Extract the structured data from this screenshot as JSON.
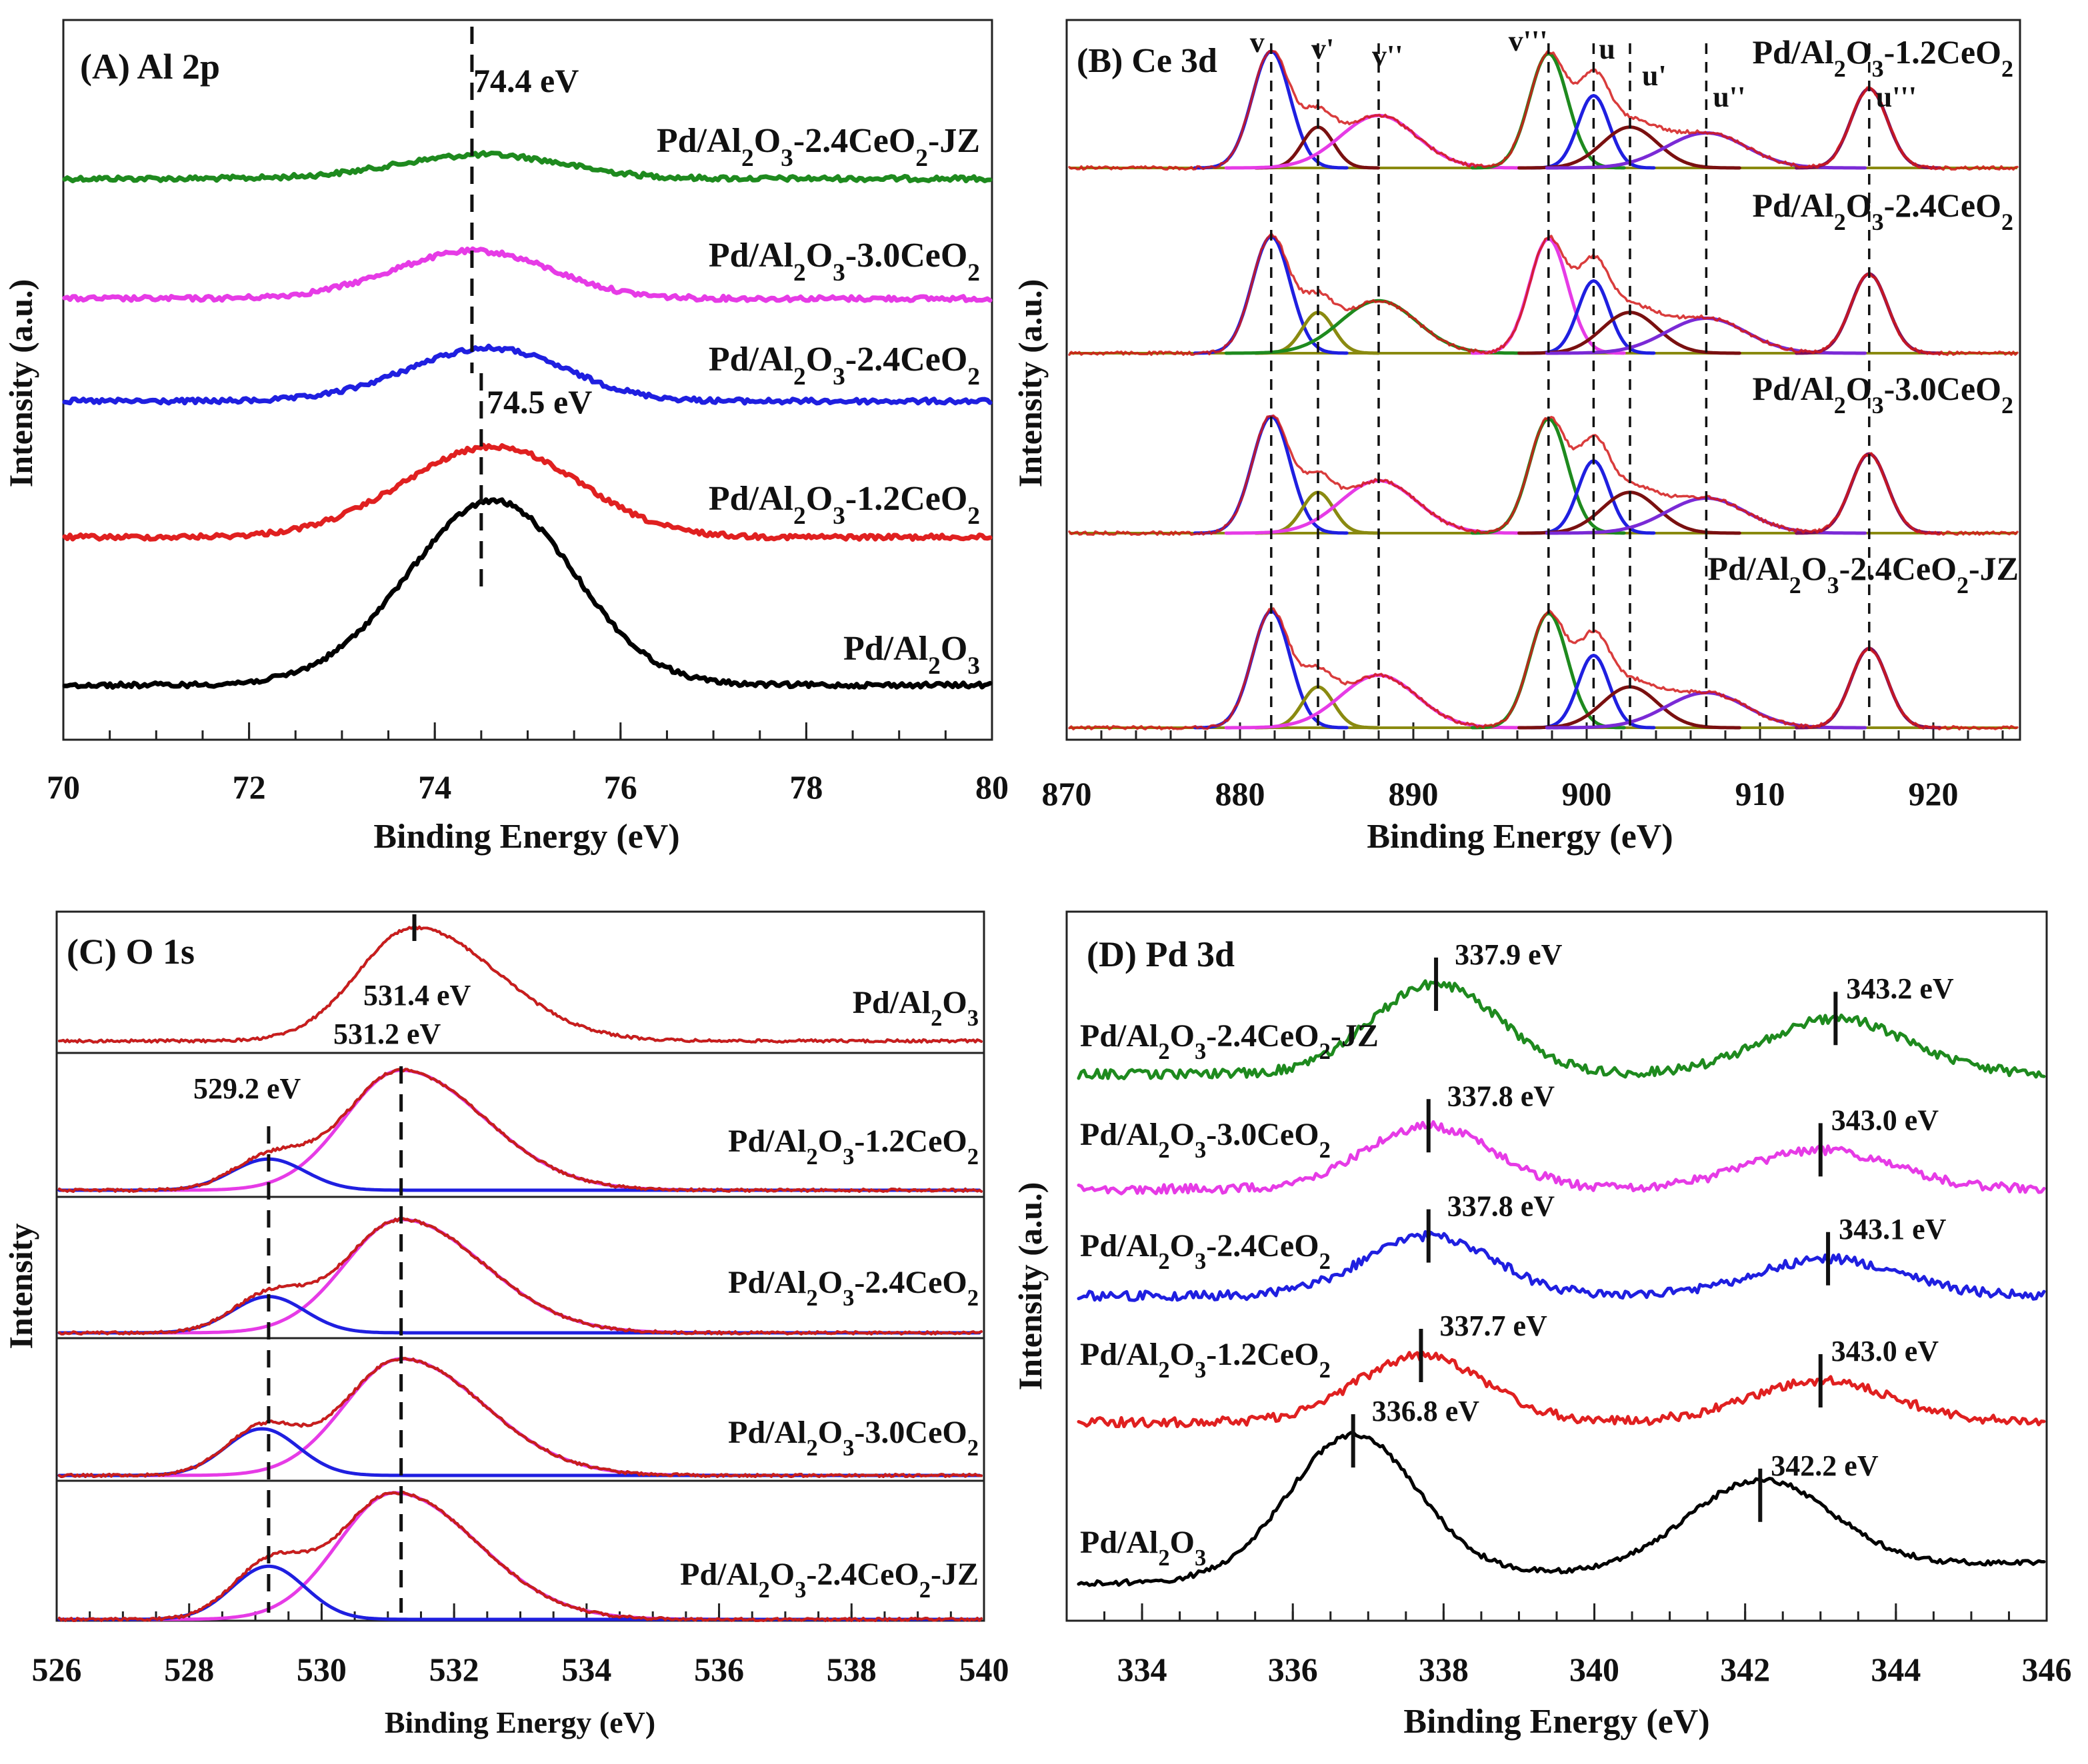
{
  "chart_data": [
    {
      "type": "line",
      "panel": "A",
      "title": "(A)  Al 2p",
      "xlabel": "Binding Energy (eV)",
      "ylabel": "Intensity (a.u.)",
      "xlim": [
        70,
        80
      ],
      "xticks": [
        "70",
        "72",
        "74",
        "76",
        "78",
        "80"
      ],
      "annotations": [
        "74.4 eV",
        "74.5 eV"
      ],
      "lines": [
        74.4,
        74.5
      ],
      "series": [
        {
          "name": "Pd/Al2O3-2.4CeO2-JZ",
          "label_main": "Pd/Al",
          "label_tail": "-2.4CeO",
          "label_end": "-JZ",
          "color": "#1e8a1e",
          "center": 74.4,
          "width": 0.9,
          "height": 0.35
        },
        {
          "name": "Pd/Al2O3-3.0CeO2",
          "label_main": "Pd/Al",
          "label_tail": "-3.0CeO",
          "label_end": "",
          "color": "#e63be6",
          "center": 74.3,
          "width": 0.85,
          "height": 0.5
        },
        {
          "name": "Pd/Al2O3-2.4CeO2",
          "label_main": "Pd/Al",
          "label_tail": "-2.4CeO",
          "label_end": "",
          "color": "#1f1fe0",
          "center": 74.45,
          "width": 0.85,
          "height": 0.52
        },
        {
          "name": "Pd/Al2O3-1.2CeO2",
          "label_main": "Pd/Al",
          "label_tail": "-1.2CeO",
          "label_end": "",
          "color": "#e02020",
          "center": 74.5,
          "width": 0.95,
          "height": 0.63
        },
        {
          "name": "Pd/Al2O3",
          "label_main": "Pd/Al",
          "label_tail": "",
          "label_end": "",
          "color": "#000000",
          "center": 74.5,
          "width": 0.9,
          "height": 1.0
        }
      ]
    },
    {
      "type": "line",
      "panel": "B",
      "title": "(B)  Ce 3d",
      "xlabel": "Binding Energy (eV)",
      "ylabel": "Intensity (a.u.)",
      "xlim": [
        870,
        925
      ],
      "xticks": [
        "870",
        "880",
        "890",
        "900",
        "910",
        "920"
      ],
      "peak_labels": [
        "v",
        "v'",
        "v''",
        "v'''",
        "u",
        "u'",
        "u''",
        "u'''"
      ],
      "peak_positions": [
        881.8,
        884.5,
        888.0,
        897.8,
        900.4,
        902.5,
        906.9,
        916.3
      ],
      "series": [
        {
          "name": "Pd/Al2O3-1.2CeO2",
          "label_main": "Pd/Al",
          "label_tail": "-1.2CeO",
          "label_end": ""
        },
        {
          "name": "Pd/Al2O3-2.4CeO2",
          "label_main": "Pd/Al",
          "label_tail": "-2.4CeO",
          "label_end": ""
        },
        {
          "name": "Pd/Al2O3-3.0CeO2",
          "label_main": "Pd/Al",
          "label_tail": "-3.0CeO",
          "label_end": ""
        },
        {
          "name": "Pd/Al2O3-2.4CeO2-JZ",
          "label_main": "Pd/Al",
          "label_tail": "-2.4CeO",
          "label_end": "-JZ"
        }
      ]
    },
    {
      "type": "line",
      "panel": "C",
      "title": "(C)  O 1s",
      "xlabel": "Binding Energy (eV)",
      "ylabel": "Intensity",
      "xlim": [
        526,
        540
      ],
      "xticks": [
        "526",
        "528",
        "530",
        "532",
        "534",
        "536",
        "538",
        "540"
      ],
      "annotations": [
        "531.4 eV",
        "531.2 eV",
        "529.2 eV"
      ],
      "series": [
        {
          "name": "Pd/Al2O3",
          "label_main": "Pd/Al",
          "label_tail": "",
          "label_end": "",
          "lattice_peak": 0,
          "hydroxyl_peak": 531.4
        },
        {
          "name": "Pd/Al2O3-1.2CeO2",
          "label_main": "Pd/Al",
          "label_tail": "-1.2CeO",
          "label_end": "",
          "lattice_peak": 529.2,
          "hydroxyl_peak": 531.2
        },
        {
          "name": "Pd/Al2O3-2.4CeO2",
          "label_main": "Pd/Al",
          "label_tail": "-2.4CeO",
          "label_end": "",
          "lattice_peak": 529.2,
          "hydroxyl_peak": 531.2
        },
        {
          "name": "Pd/Al2O3-3.0CeO2",
          "label_main": "Pd/Al",
          "label_tail": "-3.0CeO",
          "label_end": "",
          "lattice_peak": 529.1,
          "hydroxyl_peak": 531.2
        },
        {
          "name": "Pd/Al2O3-2.4CeO2-JZ",
          "label_main": "Pd/Al",
          "label_tail": "-2.4CeO",
          "label_end": "-JZ",
          "lattice_peak": 529.2,
          "hydroxyl_peak": 531.1
        }
      ]
    },
    {
      "type": "line",
      "panel": "D",
      "title": "(D)  Pd 3d",
      "xlabel": "Binding Energy (eV)",
      "ylabel": "Intensity (a.u.)",
      "xlim": [
        333,
        346
      ],
      "xticks": [
        "334",
        "336",
        "338",
        "340",
        "342",
        "344",
        "346"
      ],
      "series": [
        {
          "name": "Pd/Al2O3-2.4CeO2-JZ",
          "label_main": "Pd/Al",
          "label_tail": "-2.4CeO",
          "label_end": "-JZ",
          "color": "#1e8a1e",
          "p1": 337.9,
          "p2": 343.2,
          "p1_label": "337.9 eV",
          "p2_label": "343.2 eV"
        },
        {
          "name": "Pd/Al2O3-3.0CeO2",
          "label_main": "Pd/Al",
          "label_tail": "-3.0CeO",
          "label_end": "",
          "color": "#e63be6",
          "p1": 337.8,
          "p2": 343.0,
          "p1_label": "337.8 eV",
          "p2_label": "343.0 eV"
        },
        {
          "name": "Pd/Al2O3-2.4CeO2",
          "label_main": "Pd/Al",
          "label_tail": "-2.4CeO",
          "label_end": "",
          "color": "#1f1fe0",
          "p1": 337.8,
          "p2": 343.1,
          "p1_label": "337.8 eV",
          "p2_label": "343.1 eV"
        },
        {
          "name": "Pd/Al2O3-1.2CeO2",
          "label_main": "Pd/Al",
          "label_tail": "-1.2CeO",
          "label_end": "",
          "color": "#e02020",
          "p1": 337.7,
          "p2": 343.0,
          "p1_label": "337.7 eV",
          "p2_label": "343.0 eV"
        },
        {
          "name": "Pd/Al2O3",
          "label_main": "Pd/Al",
          "label_tail": "",
          "label_end": "",
          "color": "#000000",
          "p1": 336.8,
          "p2": 342.2,
          "p1_label": "336.8 eV",
          "p2_label": "342.2 eV"
        }
      ]
    }
  ]
}
